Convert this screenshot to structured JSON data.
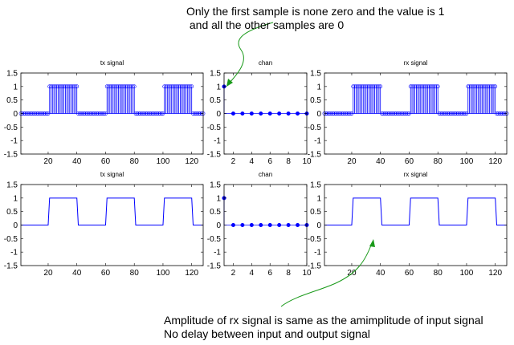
{
  "annotations": {
    "top_line1": "Only the first sample is none zero and the value is 1",
    "top_line2": " and all the other samples are 0",
    "bottom_line1": "Amplitude of rx signal is same as the amimplitude of input signal",
    "bottom_line2": "No delay between input and output signal"
  },
  "colors": {
    "series": "#0000ff",
    "annotation_arrow": "#1a9a1a",
    "axes": "#000000"
  },
  "chart_data": [
    {
      "id": "tx-stem",
      "type": "stem",
      "title": "tx signal",
      "xlim": [
        1,
        128
      ],
      "ylim": [
        -1.5,
        1.5
      ],
      "xticks": [
        20,
        40,
        60,
        80,
        100,
        120
      ],
      "yticks": [
        -1.5,
        -1,
        -0.5,
        0,
        0.5,
        1,
        1.5
      ],
      "signal": {
        "length": 128,
        "period": 40,
        "high_start": 21,
        "high_end": 40,
        "high_value": 1,
        "low_value": 0
      },
      "marker": "circle-open"
    },
    {
      "id": "chan-stem",
      "type": "stem",
      "title": "chan",
      "xlim": [
        1,
        10
      ],
      "ylim": [
        -1.5,
        1.5
      ],
      "xticks": [
        2,
        4,
        6,
        8,
        10
      ],
      "yticks": [
        -1.5,
        -1,
        -0.5,
        0,
        0.5,
        1,
        1.5
      ],
      "x": [
        1,
        2,
        3,
        4,
        5,
        6,
        7,
        8,
        9,
        10
      ],
      "y": [
        1,
        0,
        0,
        0,
        0,
        0,
        0,
        0,
        0,
        0
      ],
      "marker": "circle-filled"
    },
    {
      "id": "rx-stem",
      "type": "stem",
      "title": "rx signal",
      "xlim": [
        1,
        128
      ],
      "ylim": [
        -1.5,
        1.5
      ],
      "xticks": [
        20,
        40,
        60,
        80,
        100,
        120
      ],
      "yticks": [
        -1.5,
        -1,
        -0.5,
        0,
        0.5,
        1,
        1.5
      ],
      "signal": {
        "length": 128,
        "period": 40,
        "high_start": 21,
        "high_end": 40,
        "high_value": 1,
        "low_value": 0
      },
      "marker": "circle-open"
    },
    {
      "id": "tx-line",
      "type": "line",
      "title": "tx signal",
      "xlim": [
        1,
        128
      ],
      "ylim": [
        -1.5,
        1.5
      ],
      "xticks": [
        20,
        40,
        60,
        80,
        100,
        120
      ],
      "yticks": [
        -1.5,
        -1,
        -0.5,
        0,
        0.5,
        1,
        1.5
      ],
      "signal": {
        "length": 128,
        "period": 40,
        "high_start": 21,
        "high_end": 40,
        "high_value": 1,
        "low_value": 0
      }
    },
    {
      "id": "chan-stem-2",
      "type": "stem",
      "title": "chan",
      "xlim": [
        1,
        10
      ],
      "ylim": [
        -1.5,
        1.5
      ],
      "xticks": [
        2,
        4,
        6,
        8,
        10
      ],
      "yticks": [
        -1.5,
        -1,
        -0.5,
        0,
        0.5,
        1,
        1.5
      ],
      "x": [
        1,
        2,
        3,
        4,
        5,
        6,
        7,
        8,
        9,
        10
      ],
      "y": [
        1,
        0,
        0,
        0,
        0,
        0,
        0,
        0,
        0,
        0
      ],
      "marker": "circle-filled"
    },
    {
      "id": "rx-line",
      "type": "line",
      "title": "rx signal",
      "xlim": [
        1,
        128
      ],
      "ylim": [
        -1.5,
        1.5
      ],
      "xticks": [
        20,
        40,
        60,
        80,
        100,
        120
      ],
      "yticks": [
        -1.5,
        -1,
        -0.5,
        0,
        0.5,
        1,
        1.5
      ],
      "signal": {
        "length": 128,
        "period": 40,
        "high_start": 21,
        "high_end": 40,
        "high_value": 1,
        "low_value": 0
      }
    }
  ]
}
